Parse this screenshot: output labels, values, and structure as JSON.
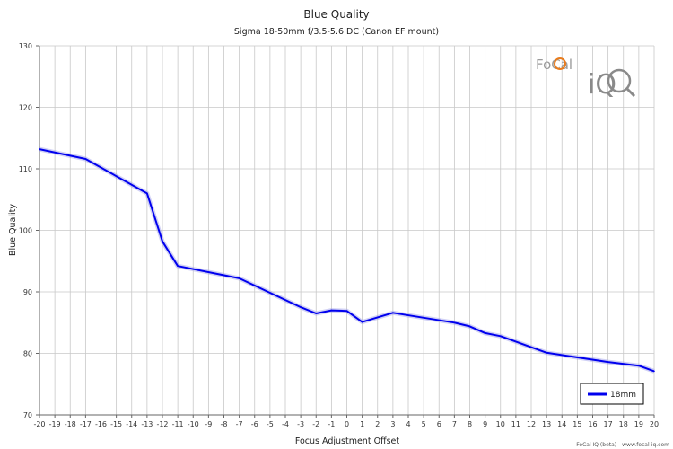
{
  "chart_data": {
    "type": "line",
    "title": "Blue Quality",
    "subtitle": "Sigma 18-50mm f/3.5-5.6 DC (Canon EF mount)",
    "xlabel": "Focus Adjustment Offset",
    "ylabel": "Blue Quality",
    "xlim": [
      -20,
      20
    ],
    "ylim": [
      70,
      130
    ],
    "x_ticks": [
      -20,
      -19,
      -18,
      -17,
      -16,
      -15,
      -14,
      -13,
      -12,
      -11,
      -10,
      -9,
      -8,
      -7,
      -6,
      -5,
      -4,
      -3,
      -2,
      -1,
      0,
      1,
      2,
      3,
      4,
      5,
      6,
      7,
      8,
      9,
      10,
      11,
      12,
      13,
      14,
      15,
      16,
      17,
      18,
      19,
      20
    ],
    "y_ticks": [
      70,
      80,
      90,
      100,
      110,
      120,
      130
    ],
    "grid": true,
    "legend_position": "bottom-right",
    "series": [
      {
        "name": "18mm",
        "color": "#0000ee",
        "x": [
          -20,
          -17,
          -13,
          -12,
          -11,
          -7,
          -3,
          -2,
          -1,
          0,
          1,
          3,
          7,
          8,
          9,
          10,
          13,
          17,
          19,
          20
        ],
        "y": [
          113.2,
          111.6,
          106,
          98.2,
          94.2,
          92.2,
          87.5,
          86.5,
          87,
          86.9,
          85.1,
          86.6,
          85,
          84.4,
          83.3,
          82.8,
          80.1,
          78.6,
          78,
          77.1
        ]
      }
    ]
  },
  "logo": {
    "text_top": "FoCal",
    "text_bottom": "iQ"
  },
  "footer": "FoCal IQ (beta) - www.focal-iq.com"
}
